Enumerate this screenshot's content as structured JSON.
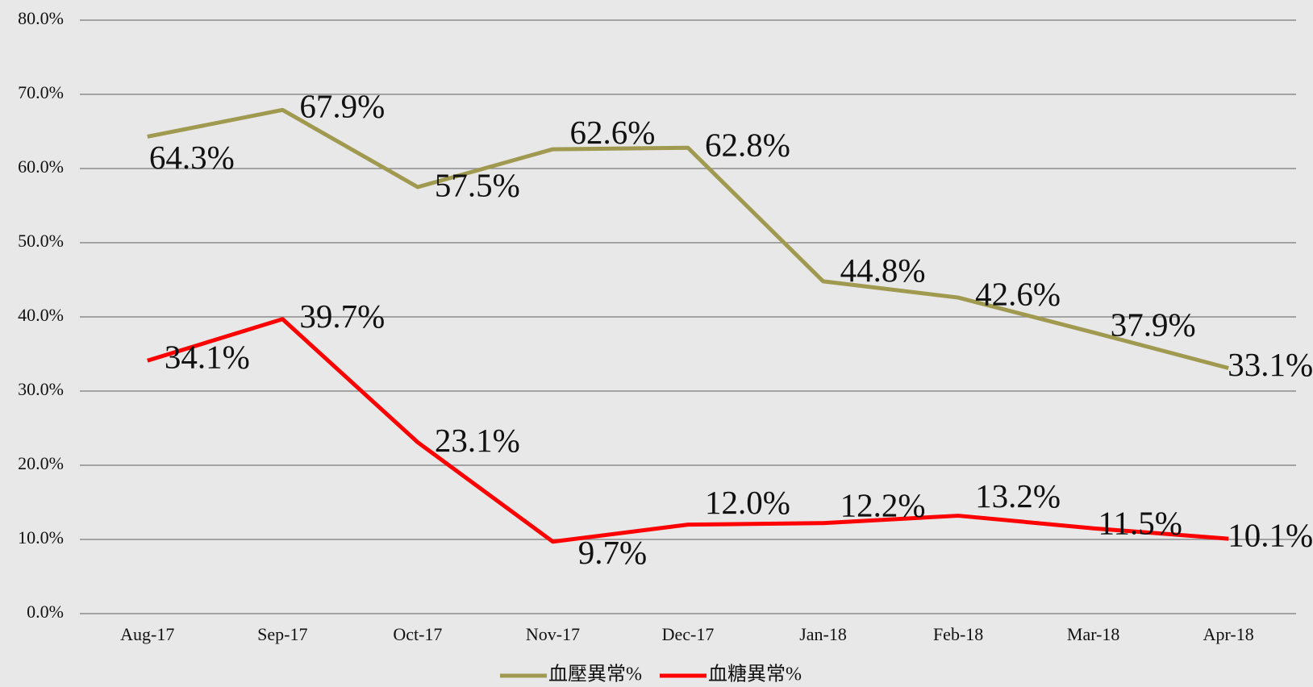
{
  "chart_data": {
    "type": "line",
    "categories": [
      "Aug-17",
      "Sep-17",
      "Oct-17",
      "Nov-17",
      "Dec-17",
      "Jan-18",
      "Feb-18",
      "Mar-18",
      "Apr-18"
    ],
    "series": [
      {
        "name": "血壓異常%",
        "color": "#a09a50",
        "values": [
          64.3,
          67.9,
          57.5,
          62.6,
          62.8,
          44.8,
          42.6,
          37.9,
          33.1
        ],
        "value_labels": [
          "64.3%",
          "67.9%",
          "57.5%",
          "62.6%",
          "62.8%",
          "44.8%",
          "42.6%",
          "37.9%",
          "33.1%"
        ]
      },
      {
        "name": "血糖異常%",
        "color": "#ff0000",
        "values": [
          34.1,
          39.7,
          23.1,
          9.7,
          12.0,
          12.2,
          13.2,
          11.5,
          10.1
        ],
        "value_labels": [
          "34.1%",
          "39.7%",
          "23.1%",
          "9.7%",
          "12.0%",
          "12.2%",
          "13.2%",
          "11.5%",
          "10.1%"
        ]
      }
    ],
    "ylim": [
      0,
      80
    ],
    "yticks": [
      {
        "value": 0,
        "label": "0.0%"
      },
      {
        "value": 10,
        "label": "10.0%"
      },
      {
        "value": 20,
        "label": "20.0%"
      },
      {
        "value": 30,
        "label": "30.0%"
      },
      {
        "value": 40,
        "label": "40.0%"
      },
      {
        "value": 50,
        "label": "50.0%"
      },
      {
        "value": 60,
        "label": "60.0%"
      },
      {
        "value": 70,
        "label": "70.0%"
      },
      {
        "value": 80,
        "label": "80.0%"
      }
    ],
    "grid": true,
    "legend": "bottom"
  }
}
